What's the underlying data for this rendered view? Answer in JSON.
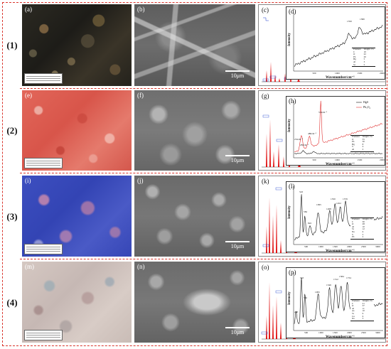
{
  "rows": [
    {
      "label": "(1)"
    },
    {
      "label": "(2)"
    },
    {
      "label": "(3)"
    },
    {
      "label": "(4)"
    }
  ],
  "panels": {
    "a": "(a)",
    "b": "(b)",
    "c": "(c)",
    "d": "(d)",
    "e": "(e)",
    "f": "(f)",
    "g": "(g)",
    "h": "(h)",
    "i": "(i)",
    "j": "(j)",
    "k": "(k)",
    "l": "(l)",
    "m": "(m)",
    "n": "(n)",
    "o": "(o)",
    "p": "(p)"
  },
  "scale_bar": "10μm",
  "raman": {
    "ylabel": "Intensity",
    "xlabel": "Wavenumber/cm⁻¹",
    "d": {
      "ticks": [
        "500",
        "1000",
        "1500",
        "2000"
      ],
      "peaks": [
        "1350",
        "1580"
      ],
      "table_head": [
        "Element",
        "Weight 1%"
      ],
      "table": [
        [
          "C",
          "10"
        ],
        [
          "O",
          "22"
        ],
        [
          "Pb",
          "20"
        ],
        [
          "Hg",
          "5"
        ],
        [
          "Al",
          "3"
        ],
        [
          "Si",
          "5"
        ]
      ]
    },
    "h": {
      "ticks": [
        "500",
        "1000",
        "1500",
        "2000"
      ],
      "legend": [
        "HgS",
        "Pb₃O₄"
      ],
      "peaks": [
        "252cm⁻¹",
        "283cm⁻¹",
        "480cm⁻¹",
        "553cm⁻¹"
      ],
      "table_head": [
        "Element",
        "Weight 1%"
      ],
      "table": [
        [
          "O",
          "55"
        ],
        [
          "Pb",
          "30"
        ],
        [
          "Hg",
          "8"
        ],
        [
          "S",
          "4"
        ],
        [
          "Al",
          "2"
        ]
      ]
    },
    "l": {
      "ticks": [
        "500",
        "1000",
        "1500",
        "2000",
        "2500",
        "3000"
      ],
      "peaks": [
        "543",
        "582",
        "822",
        "1095",
        "1268",
        "1350",
        "1452",
        "1576"
      ],
      "table_head": [
        "Element",
        "Weight 1%"
      ],
      "table": [
        [
          "C",
          "30"
        ],
        [
          "O",
          "28"
        ],
        [
          "Al",
          "10"
        ],
        [
          "Si",
          "12"
        ],
        [
          "Na",
          "6"
        ],
        [
          "S",
          "5"
        ],
        [
          "Pb",
          "2"
        ]
      ]
    },
    "p": {
      "ticks": [
        "500",
        "1000",
        "1500",
        "2000",
        "2500",
        "3000"
      ],
      "peaks": [
        "258",
        "543",
        "582",
        "1095",
        "1346",
        "1512",
        "1584",
        "1734"
      ],
      "table_head": [
        "Element",
        "Weight 1%"
      ],
      "table": [
        [
          "C",
          "21"
        ],
        [
          "O",
          "37"
        ],
        [
          "Al",
          "11"
        ],
        [
          "As",
          "10"
        ],
        [
          "Si",
          "9"
        ],
        [
          "Cu",
          "6"
        ],
        [
          "Na",
          "3"
        ]
      ]
    }
  }
}
